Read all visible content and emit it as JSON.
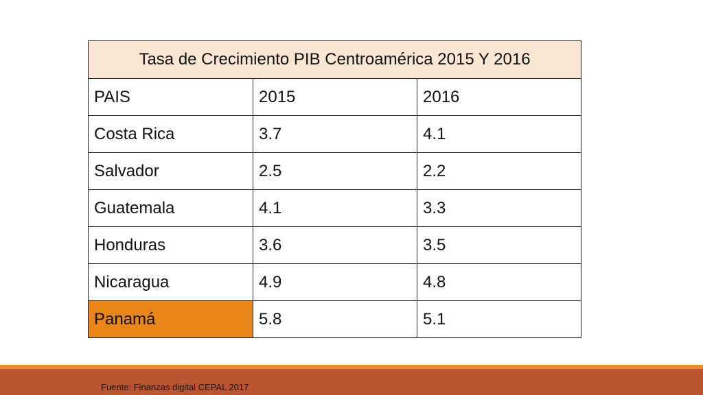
{
  "table": {
    "title": "Tasa de  Crecimiento  PIB Centroamérica  2015 Y 2016",
    "headers": [
      "PAIS",
      "2015",
      "2016"
    ],
    "rows": [
      [
        "Costa Rica",
        "3.7",
        "4.1"
      ],
      [
        "Salvador",
        "2.5",
        "2.2"
      ],
      [
        "Guatemala",
        "4.1",
        "3.3"
      ],
      [
        "Honduras",
        "3.6",
        "3.5"
      ],
      [
        "Nicaragua",
        "4.9",
        "4.8"
      ],
      [
        "Panamá",
        "5.8",
        "5.1"
      ]
    ],
    "highlighted_country": "Panamá"
  },
  "footer": {
    "source": "Fuente: Finanzas digital  CEPAL  2017"
  },
  "colors": {
    "title_fill": "#fbe6d4",
    "highlight_fill": "#e8861a",
    "footer_bar": "#bb5531",
    "footer_accent": "#e8902a"
  }
}
